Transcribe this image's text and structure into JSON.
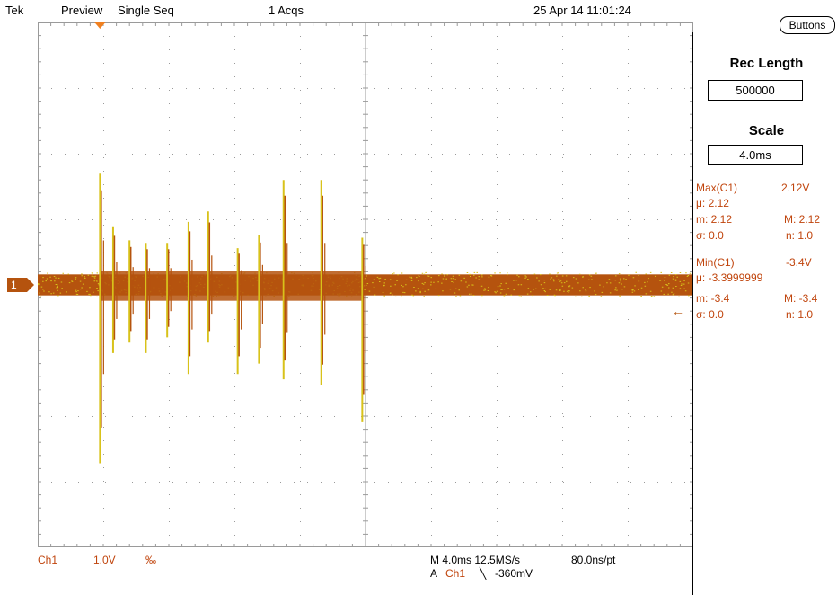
{
  "header": {
    "brand": "Tek",
    "mode": "Preview",
    "acq_mode": "Single Seq",
    "acqs": "1 Acqs",
    "datetime": "25 Apr 14 11:01:24"
  },
  "buttons_label": "Buttons",
  "right_panel": {
    "rec_length_title": "Rec Length",
    "rec_length_value": "500000",
    "scale_title": "Scale",
    "scale_value": "4.0ms",
    "max": {
      "label": "Max(C1)",
      "value": "2.12V",
      "mu": "μ: 2.12",
      "m_min": "m: 2.12",
      "m_max": "M: 2.12",
      "sigma": "σ: 0.0",
      "n": "n: 1.0"
    },
    "min": {
      "label": "Min(C1)",
      "value": "-3.4V",
      "mu": "μ: -3.3999999",
      "m_min": "m: -3.4",
      "m_max": "M: -3.4",
      "sigma": "σ: 0.0",
      "n": "n: 1.0"
    }
  },
  "bottom": {
    "ch_label": "Ch1",
    "volts_div": "1.0V",
    "bw_symbol": "‰",
    "timebase": "M 4.0ms 12.5MS/s",
    "time_per_pt": "80.0ns/pt",
    "trigger_prefix": "A",
    "trigger_source": "Ch1",
    "trigger_slope": "╲",
    "trigger_level": "-360mV"
  },
  "ch1_marker": "1",
  "colors": {
    "trace_main": "#b5530e",
    "trace_highlight": "#d8c21a",
    "grid": "#9a9a9a",
    "readout": "#c0440c"
  },
  "chart_data": {
    "type": "line",
    "x_unit": "ms",
    "y_unit": "V",
    "xlim": [
      -20,
      20
    ],
    "ylim": [
      -5,
      5
    ],
    "baseline_v": 0,
    "noise_band_v": 0.2,
    "spikes": [
      {
        "t": -16.2,
        "high": 2.12,
        "low": -3.4
      },
      {
        "t": -15.4,
        "high": 1.1,
        "low": -1.3
      },
      {
        "t": -14.4,
        "high": 0.85,
        "low": -1.1
      },
      {
        "t": -13.4,
        "high": 0.8,
        "low": -1.3
      },
      {
        "t": -12.1,
        "high": 0.8,
        "low": -1.0
      },
      {
        "t": -10.8,
        "high": 1.2,
        "low": -1.7
      },
      {
        "t": -9.6,
        "high": 1.4,
        "low": -1.1
      },
      {
        "t": -7.8,
        "high": 0.7,
        "low": -1.7
      },
      {
        "t": -6.5,
        "high": 0.95,
        "low": -1.5
      },
      {
        "t": -5.0,
        "high": 2.0,
        "low": -1.8
      },
      {
        "t": -2.7,
        "high": 2.0,
        "low": -1.9
      },
      {
        "t": -0.2,
        "high": 0.9,
        "low": -2.6
      }
    ]
  }
}
